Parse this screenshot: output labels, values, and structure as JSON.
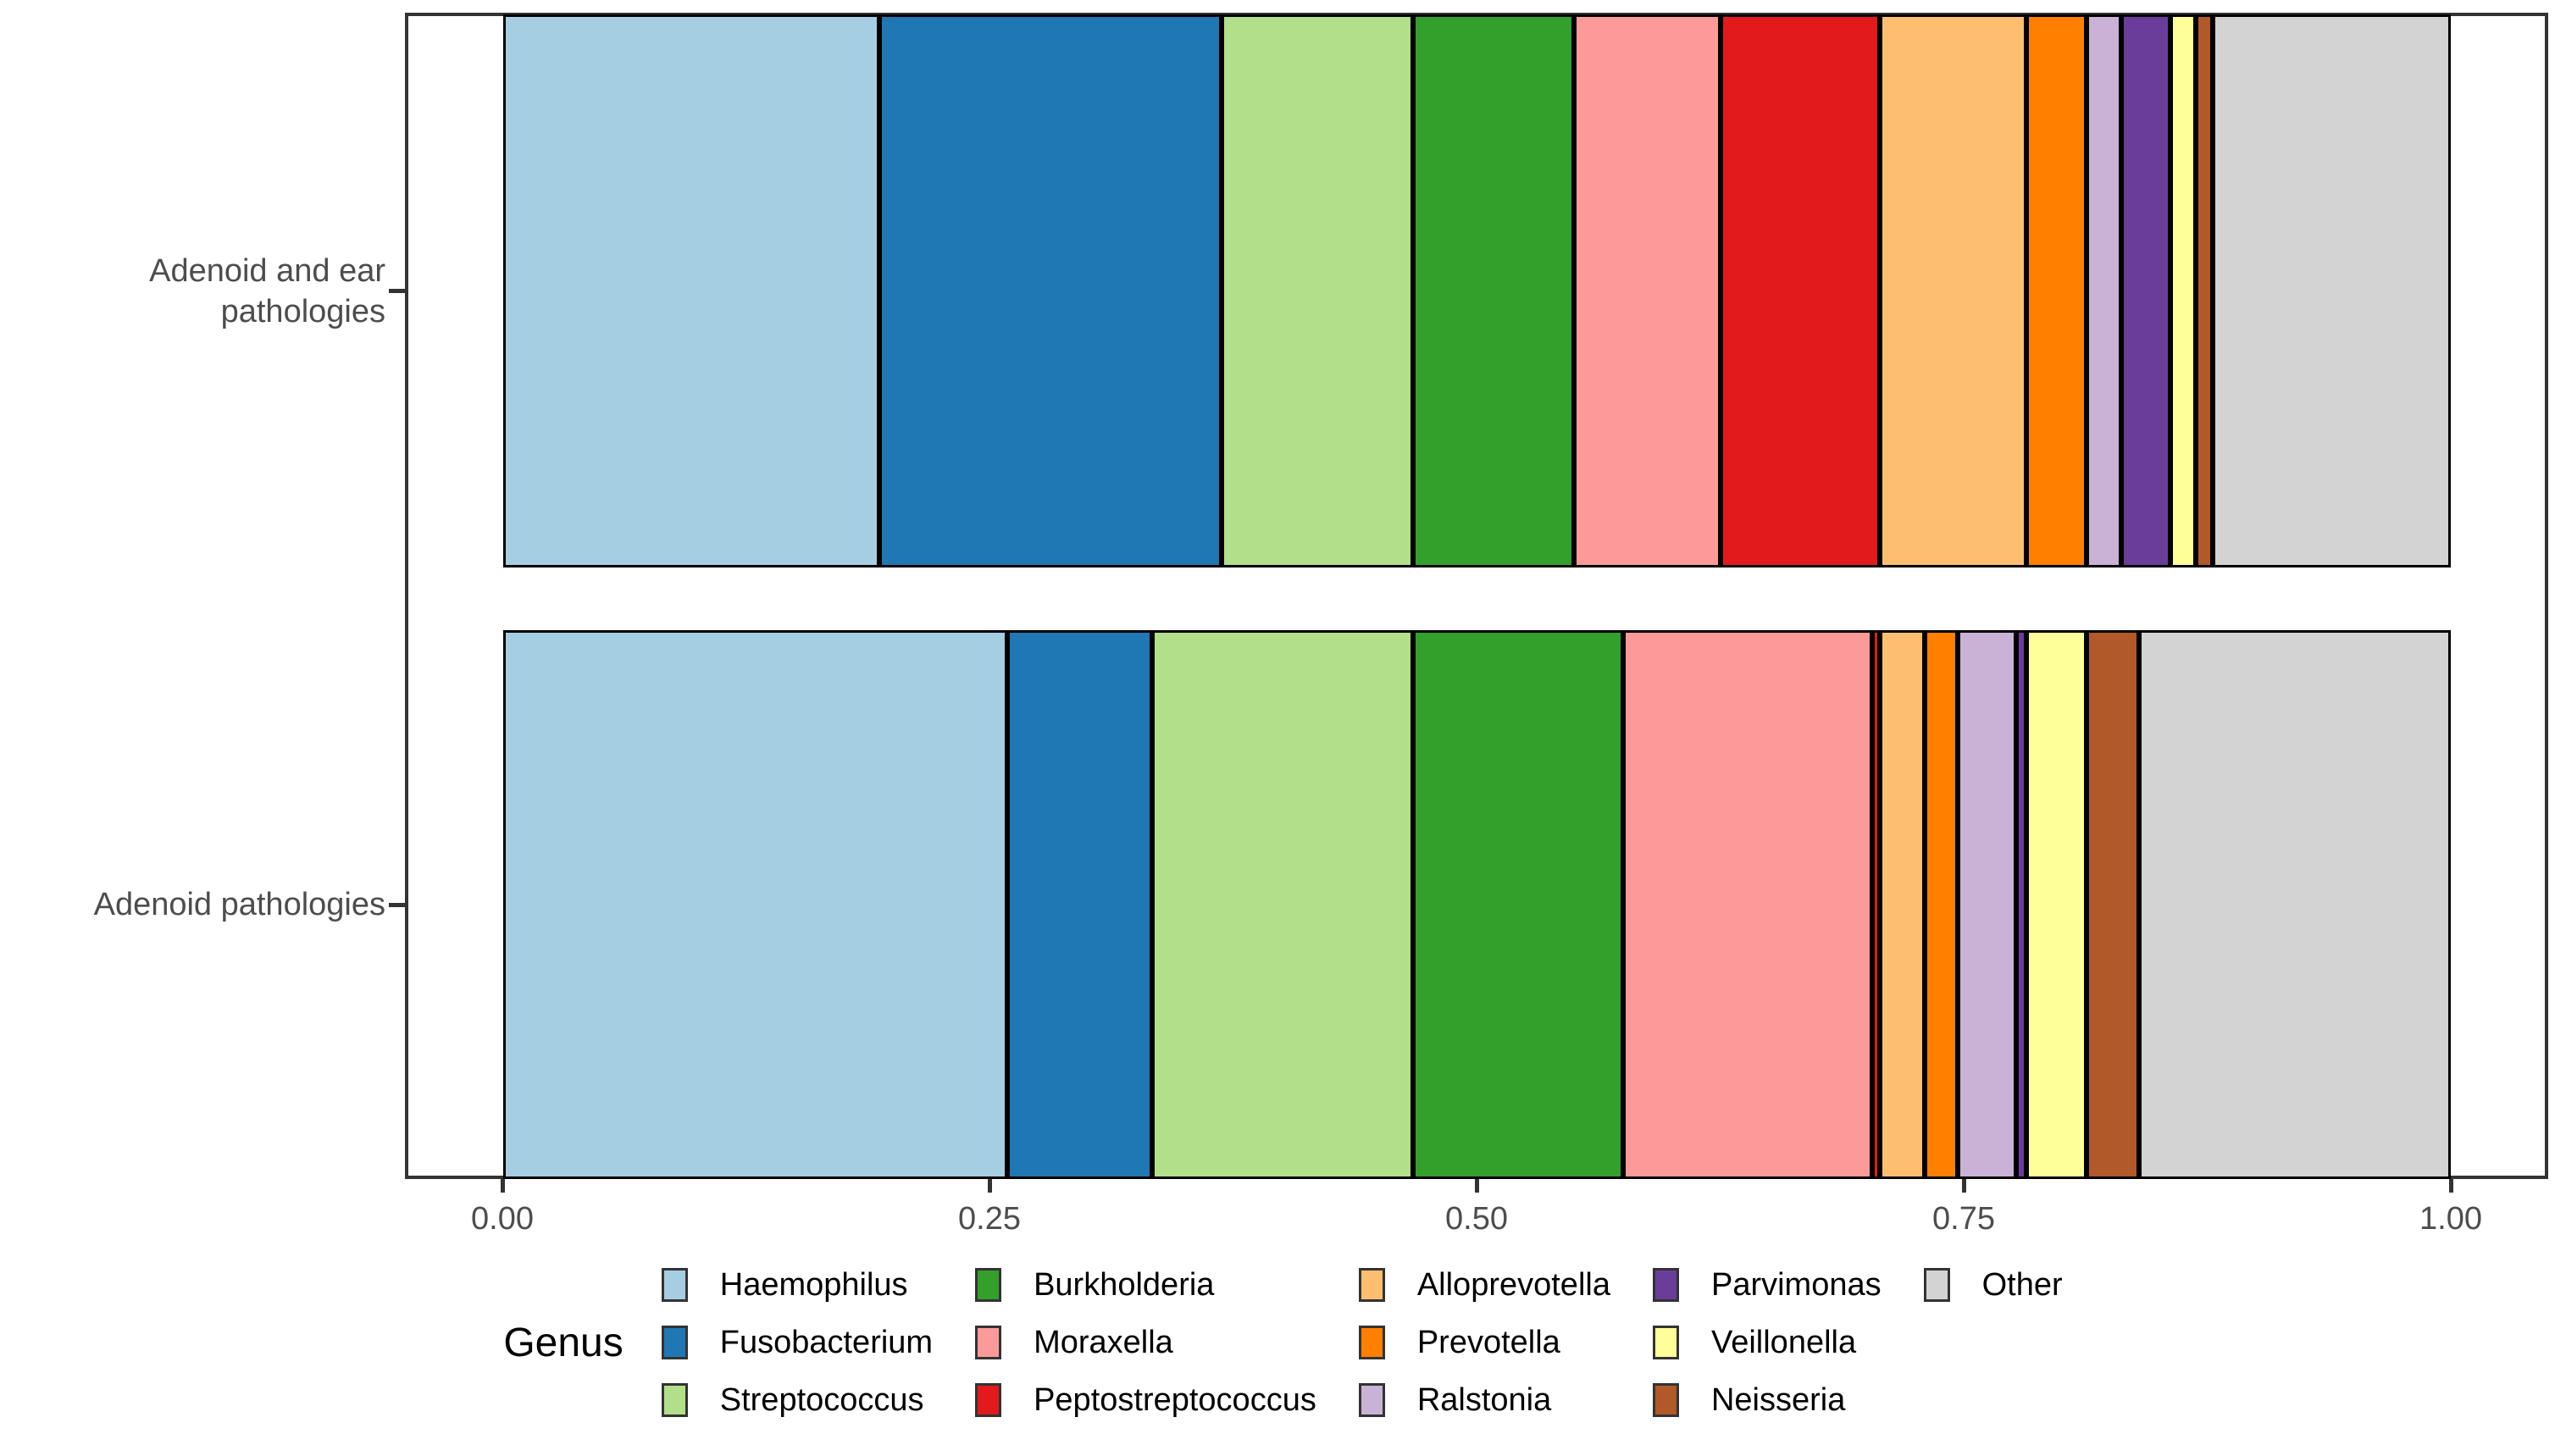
{
  "figure": {
    "background": "#FFFFFF",
    "axis_text_color": "#4D4D4D",
    "panel_border_color": "#333333",
    "bar_border_color": "#000000"
  },
  "chart_data": {
    "type": "bar",
    "orientation": "horizontal",
    "stacked": true,
    "normalized": true,
    "title": "",
    "xlabel": "",
    "ylabel": "",
    "xlim": [
      0,
      1
    ],
    "x_ticks": [
      "0.00",
      "0.25",
      "0.50",
      "0.75",
      "1.00"
    ],
    "grid": false,
    "legend_title": "Genus",
    "legend_position": "bottom",
    "categories": [
      "Adenoid and ear pathologies",
      "Adenoid pathologies"
    ],
    "series": [
      {
        "name": "Haemophilus",
        "color": "#A6CEE3",
        "values": [
          0.193,
          0.259
        ]
      },
      {
        "name": "Fusobacterium",
        "color": "#1F78B4",
        "values": [
          0.176,
          0.074
        ]
      },
      {
        "name": "Streptococcus",
        "color": "#B2DF8A",
        "values": [
          0.098,
          0.134
        ]
      },
      {
        "name": "Burkholderia",
        "color": "#33A02C",
        "values": [
          0.083,
          0.108
        ]
      },
      {
        "name": "Moraxella",
        "color": "#FB9A99",
        "values": [
          0.075,
          0.128
        ]
      },
      {
        "name": "Peptostreptococcus",
        "color": "#E31A1C",
        "values": [
          0.082,
          0.004
        ]
      },
      {
        "name": "Alloprevotella",
        "color": "#FDBF6F",
        "values": [
          0.075,
          0.023
        ]
      },
      {
        "name": "Prevotella",
        "color": "#FF7F00",
        "values": [
          0.031,
          0.017
        ]
      },
      {
        "name": "Ralstonia",
        "color": "#CAB2D6",
        "values": [
          0.018,
          0.03
        ]
      },
      {
        "name": "Parvimonas",
        "color": "#6A3D9A",
        "values": [
          0.025,
          0.005
        ]
      },
      {
        "name": "Veillonella",
        "color": "#FFFF99",
        "values": [
          0.013,
          0.031
        ]
      },
      {
        "name": "Neisseria",
        "color": "#B15928",
        "values": [
          0.009,
          0.027
        ]
      },
      {
        "name": "Other",
        "color": "#D3D3D3",
        "values": [
          0.122,
          0.16
        ]
      }
    ]
  },
  "y_axis": {
    "labels": [
      {
        "line1": "Adenoid and ear",
        "line2": "pathologies"
      },
      {
        "line1": "Adenoid pathologies",
        "line2": ""
      }
    ]
  },
  "x_axis": {
    "ticks": [
      "0.00",
      "0.25",
      "0.50",
      "0.75",
      "1.00"
    ]
  },
  "legend": {
    "title": "Genus",
    "columns": [
      [
        {
          "label": "Haemophilus",
          "color": "#A6CEE3"
        },
        {
          "label": "Fusobacterium",
          "color": "#1F78B4"
        },
        {
          "label": "Streptococcus",
          "color": "#B2DF8A"
        }
      ],
      [
        {
          "label": "Burkholderia",
          "color": "#33A02C"
        },
        {
          "label": "Moraxella",
          "color": "#FB9A99"
        },
        {
          "label": "Peptostreptococcus",
          "color": "#E31A1C"
        }
      ],
      [
        {
          "label": "Alloprevotella",
          "color": "#FDBF6F"
        },
        {
          "label": "Prevotella",
          "color": "#FF7F00"
        },
        {
          "label": "Ralstonia",
          "color": "#CAB2D6"
        }
      ],
      [
        {
          "label": "Parvimonas",
          "color": "#6A3D9A"
        },
        {
          "label": "Veillonella",
          "color": "#FFFF99"
        },
        {
          "label": "Neisseria",
          "color": "#B15928"
        }
      ],
      [
        {
          "label": "Other",
          "color": "#D3D3D3"
        }
      ]
    ]
  }
}
